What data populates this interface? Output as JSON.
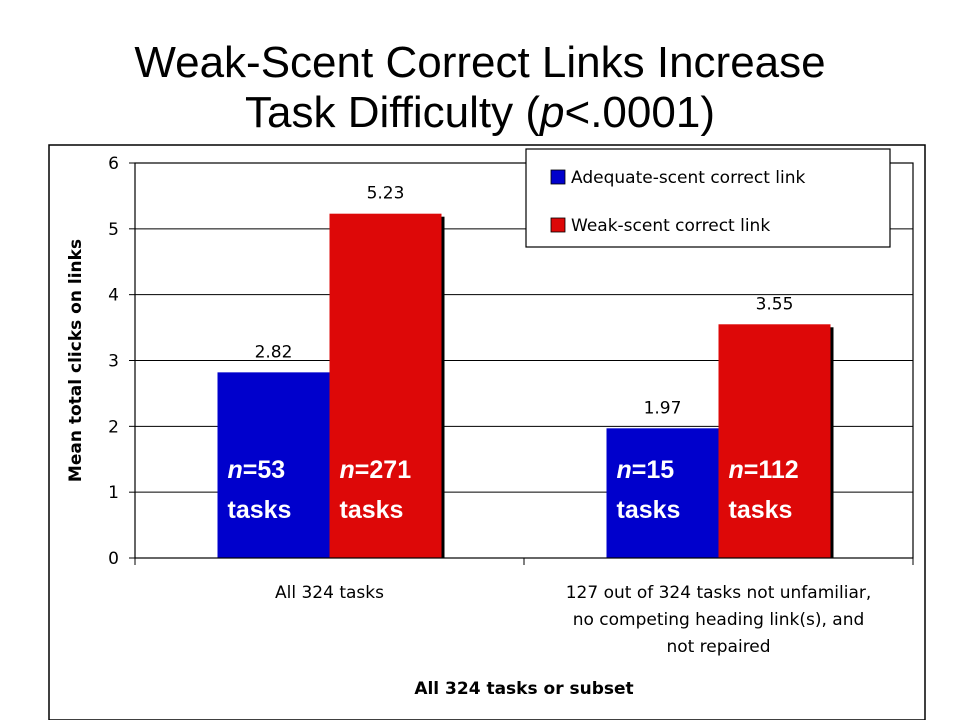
{
  "title_lines": [
    "Weak-Scent Correct Links Increase",
    "Task Difficulty (",
    "p",
    "<.0001)"
  ],
  "chart_data": {
    "type": "bar",
    "title": "Weak-Scent Correct Links Increase Task Difficulty (p<.0001)",
    "ylabel": "Mean total clicks on links",
    "xlabel": "All 324 tasks or subset",
    "ylim": [
      0,
      6
    ],
    "yticks": [
      "0",
      "1",
      "2",
      "3",
      "4",
      "5",
      "6"
    ],
    "legend_position": "top-right",
    "categories": [
      [
        "All 324 tasks"
      ],
      [
        "127 out of 324 tasks not unfamiliar,",
        "no competing heading link(s), and",
        "not repaired"
      ]
    ],
    "series": [
      {
        "name": "Adequate-scent correct link",
        "color": "#0000cc",
        "values": [
          2.82,
          1.97
        ],
        "labels": [
          "2.82",
          "1.97"
        ],
        "notes": [
          [
            "n",
            "=53",
            "tasks"
          ],
          [
            "n",
            "=15",
            "tasks"
          ]
        ]
      },
      {
        "name": "Weak-scent correct link",
        "color": "#dd0808",
        "values": [
          5.23,
          3.55
        ],
        "labels": [
          "5.23",
          "3.55"
        ],
        "notes": [
          [
            "n",
            "=271",
            "tasks"
          ],
          [
            "n",
            "=112",
            "tasks"
          ]
        ]
      }
    ]
  }
}
